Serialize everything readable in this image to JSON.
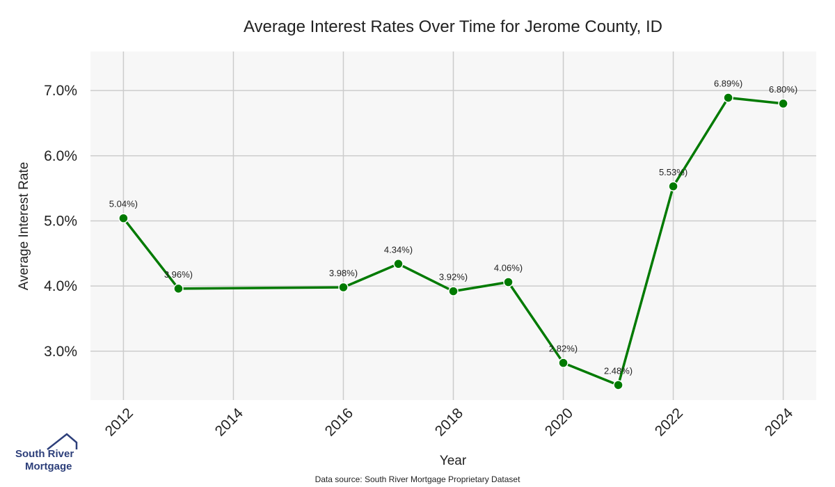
{
  "chart_data": {
    "type": "line",
    "title": "Average Interest Rates Over Time for Jerome County, ID",
    "xlabel": "Year",
    "ylabel": "Average Interest Rate",
    "x_ticks": [
      "2012",
      "2014",
      "2016",
      "2018",
      "2020",
      "2022",
      "2024"
    ],
    "y_ticks": [
      "3.0%",
      "4.0%",
      "5.0%",
      "6.0%",
      "7.0%"
    ],
    "xlim": [
      2011.4,
      2024.6
    ],
    "ylim": [
      2.25,
      7.6
    ],
    "grid": true,
    "series": [
      {
        "color": "#007a00",
        "points": [
          {
            "x": 2012,
            "y": 5.04,
            "label": "5.04%)"
          },
          {
            "x": 2013,
            "y": 3.96,
            "label": "3.96%)"
          },
          {
            "x": 2016,
            "y": 3.98,
            "label": "3.98%)"
          },
          {
            "x": 2017,
            "y": 4.34,
            "label": "4.34%)"
          },
          {
            "x": 2018,
            "y": 3.92,
            "label": "3.92%)"
          },
          {
            "x": 2019,
            "y": 4.06,
            "label": "4.06%)"
          },
          {
            "x": 2020,
            "y": 2.82,
            "label": "2.82%)"
          },
          {
            "x": 2021,
            "y": 2.48,
            "label": "2.48%)"
          },
          {
            "x": 2022,
            "y": 5.53,
            "label": "5.53%)"
          },
          {
            "x": 2023,
            "y": 6.89,
            "label": "6.89%)"
          },
          {
            "x": 2024,
            "y": 6.8,
            "label": "6.80%)"
          }
        ]
      }
    ],
    "source": "Data source: South River Mortgage Proprietary Dataset"
  },
  "logo": {
    "line1": "South River",
    "line2": "Mortgage",
    "icon": "house-roof-icon",
    "color": "#2d3f7a"
  }
}
